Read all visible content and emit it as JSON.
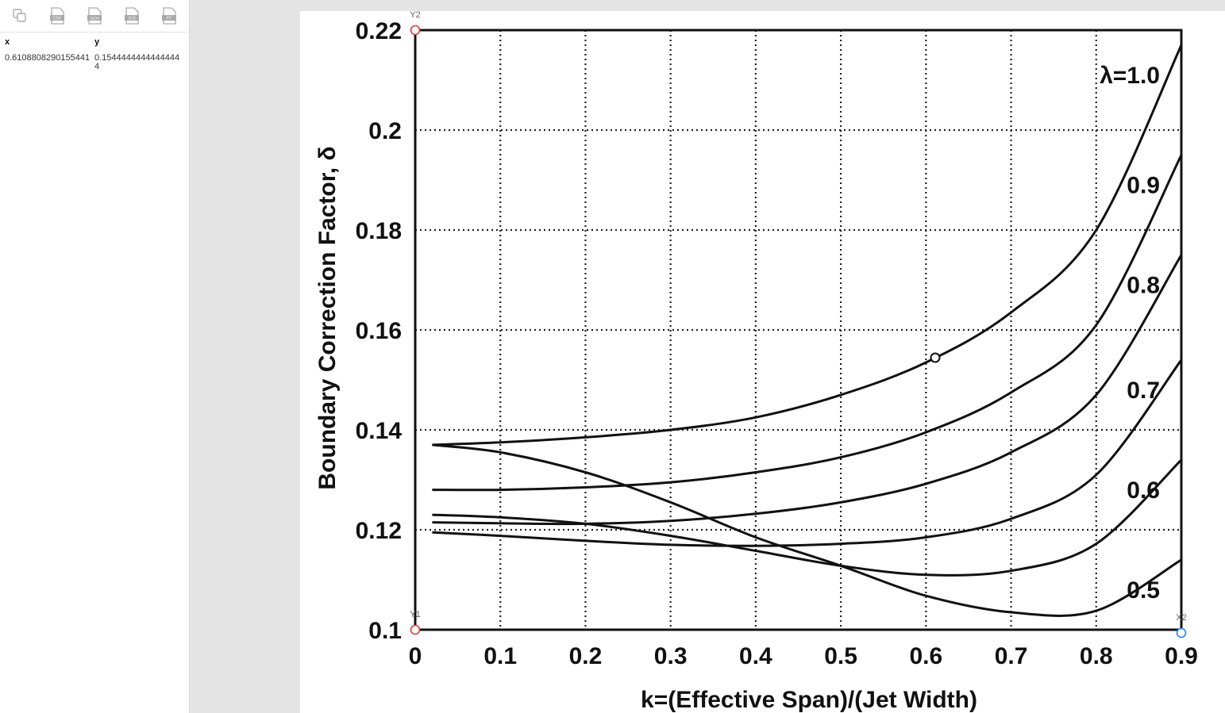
{
  "toolbar": {
    "buttons": [
      {
        "name": "copy",
        "label": ""
      },
      {
        "name": "csv",
        "label": "CSV"
      },
      {
        "name": "json",
        "label": "JSON"
      },
      {
        "name": "xls",
        "label": "XLS"
      },
      {
        "name": "py",
        "label": "PY"
      }
    ]
  },
  "table": {
    "headers": {
      "x": "x",
      "y": "y"
    },
    "rows": [
      {
        "x": "0.6108808290155441",
        "y": "0.15444444444444444"
      }
    ]
  },
  "markers": {
    "y2": "Y2",
    "y1": "Y1",
    "x2": "X2"
  },
  "chart_data": {
    "type": "line",
    "xlabel": "k=(Effective Span)/(Jet Width)",
    "ylabel": "Boundary Correction Factor, δ",
    "xlim": [
      0,
      0.9
    ],
    "ylim": [
      0.1,
      0.22
    ],
    "grid": true,
    "xticks": [
      0,
      0.1,
      0.2,
      0.3,
      0.4,
      0.5,
      0.6,
      0.7,
      0.8,
      0.9
    ],
    "xtick_labels": [
      "0",
      "0.1",
      "0.2",
      "0.3",
      "0.4",
      "0.5",
      "0.6",
      "0.7",
      "0.8",
      "0.9"
    ],
    "yticks": [
      0.1,
      0.12,
      0.14,
      0.16,
      0.18,
      0.2,
      0.22
    ],
    "ytick_labels": [
      "0.1",
      "0.12",
      "0.14",
      "0.16",
      "0.18",
      "0.2",
      "0.22"
    ],
    "series": [
      {
        "name": "λ=1.0",
        "x": [
          0.02,
          0.1,
          0.2,
          0.3,
          0.4,
          0.5,
          0.6,
          0.7,
          0.8,
          0.9
        ],
        "y": [
          0.137,
          0.1375,
          0.1385,
          0.14,
          0.1425,
          0.147,
          0.1535,
          0.1635,
          0.18,
          0.217
        ]
      },
      {
        "name": "0.9",
        "x": [
          0.02,
          0.1,
          0.2,
          0.3,
          0.4,
          0.5,
          0.6,
          0.7,
          0.8,
          0.9
        ],
        "y": [
          0.128,
          0.128,
          0.1285,
          0.1295,
          0.1315,
          0.1345,
          0.1395,
          0.1475,
          0.161,
          0.195
        ]
      },
      {
        "name": "0.8",
        "x": [
          0.02,
          0.1,
          0.2,
          0.3,
          0.4,
          0.5,
          0.6,
          0.7,
          0.8,
          0.9
        ],
        "y": [
          0.1215,
          0.1213,
          0.1212,
          0.1218,
          0.1232,
          0.1255,
          0.1292,
          0.1355,
          0.147,
          0.175
        ]
      },
      {
        "name": "0.7",
        "x": [
          0.02,
          0.1,
          0.2,
          0.3,
          0.4,
          0.5,
          0.6,
          0.7,
          0.8,
          0.9
        ],
        "y": [
          0.1195,
          0.1188,
          0.1178,
          0.117,
          0.1168,
          0.1172,
          0.1185,
          0.1222,
          0.131,
          0.154
        ]
      },
      {
        "name": "0.6",
        "x": [
          0.02,
          0.1,
          0.2,
          0.3,
          0.4,
          0.5,
          0.6,
          0.7,
          0.8,
          0.9
        ],
        "y": [
          0.123,
          0.1225,
          0.1212,
          0.1188,
          0.1158,
          0.1128,
          0.111,
          0.1118,
          0.1172,
          0.134
        ]
      },
      {
        "name": "0.5",
        "x": [
          0.02,
          0.1,
          0.2,
          0.3,
          0.4,
          0.5,
          0.6,
          0.7,
          0.8,
          0.9
        ],
        "y": [
          0.137,
          0.1355,
          0.1315,
          0.1255,
          0.1185,
          0.1128,
          0.1068,
          0.1035,
          0.1038,
          0.114
        ]
      }
    ],
    "picked_point": {
      "x": 0.6108808290155441,
      "y": 0.15444444444444444
    }
  }
}
